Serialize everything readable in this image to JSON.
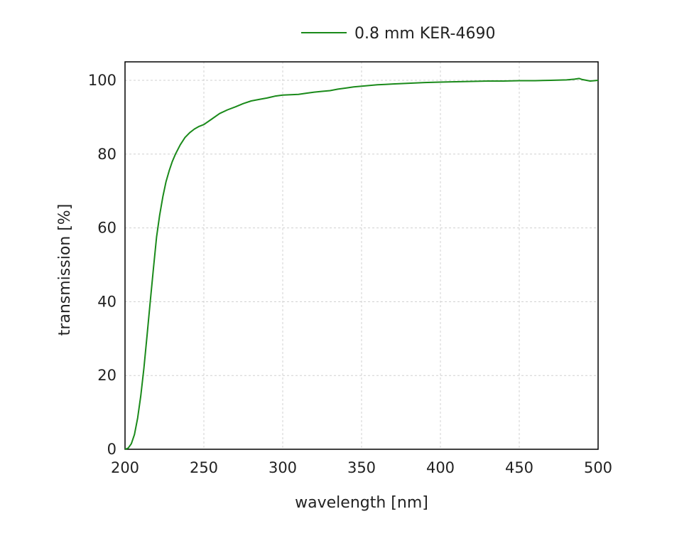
{
  "chart_data": {
    "type": "line",
    "title": "",
    "xlabel": "wavelength [nm]",
    "ylabel": "transmission [%]",
    "xlim": [
      200,
      500
    ],
    "ylim": [
      0,
      105
    ],
    "xticks": [
      200,
      250,
      300,
      350,
      400,
      450,
      500
    ],
    "yticks": [
      0,
      20,
      40,
      60,
      80,
      100
    ],
    "grid": true,
    "legend_position": "top",
    "series": [
      {
        "name": "0.8 mm KER-4690",
        "color": "#1a8a1a",
        "x": [
          200,
          202,
          204,
          206,
          208,
          210,
          212,
          214,
          216,
          218,
          220,
          222,
          224,
          226,
          228,
          230,
          232,
          235,
          238,
          241,
          244,
          247,
          250,
          255,
          260,
          265,
          270,
          275,
          280,
          285,
          290,
          295,
          300,
          305,
          310,
          315,
          320,
          325,
          330,
          335,
          340,
          345,
          350,
          355,
          360,
          365,
          370,
          380,
          390,
          400,
          410,
          420,
          430,
          440,
          450,
          460,
          470,
          480,
          485,
          488,
          490,
          495,
          500
        ],
        "y": [
          0,
          0.3,
          1.5,
          4,
          8.5,
          14.5,
          22,
          31,
          40,
          49,
          57.5,
          63.5,
          68.5,
          72.5,
          75.5,
          78,
          80,
          82.5,
          84.5,
          85.8,
          86.8,
          87.5,
          88,
          89.5,
          91,
          92,
          92.8,
          93.7,
          94.4,
          94.8,
          95.2,
          95.7,
          96,
          96.1,
          96.2,
          96.5,
          96.8,
          97,
          97.2,
          97.6,
          97.9,
          98.2,
          98.4,
          98.6,
          98.8,
          98.9,
          99,
          99.2,
          99.4,
          99.5,
          99.6,
          99.7,
          99.8,
          99.8,
          99.9,
          99.9,
          100,
          100.1,
          100.3,
          100.5,
          100.2,
          99.8,
          100
        ]
      }
    ]
  }
}
